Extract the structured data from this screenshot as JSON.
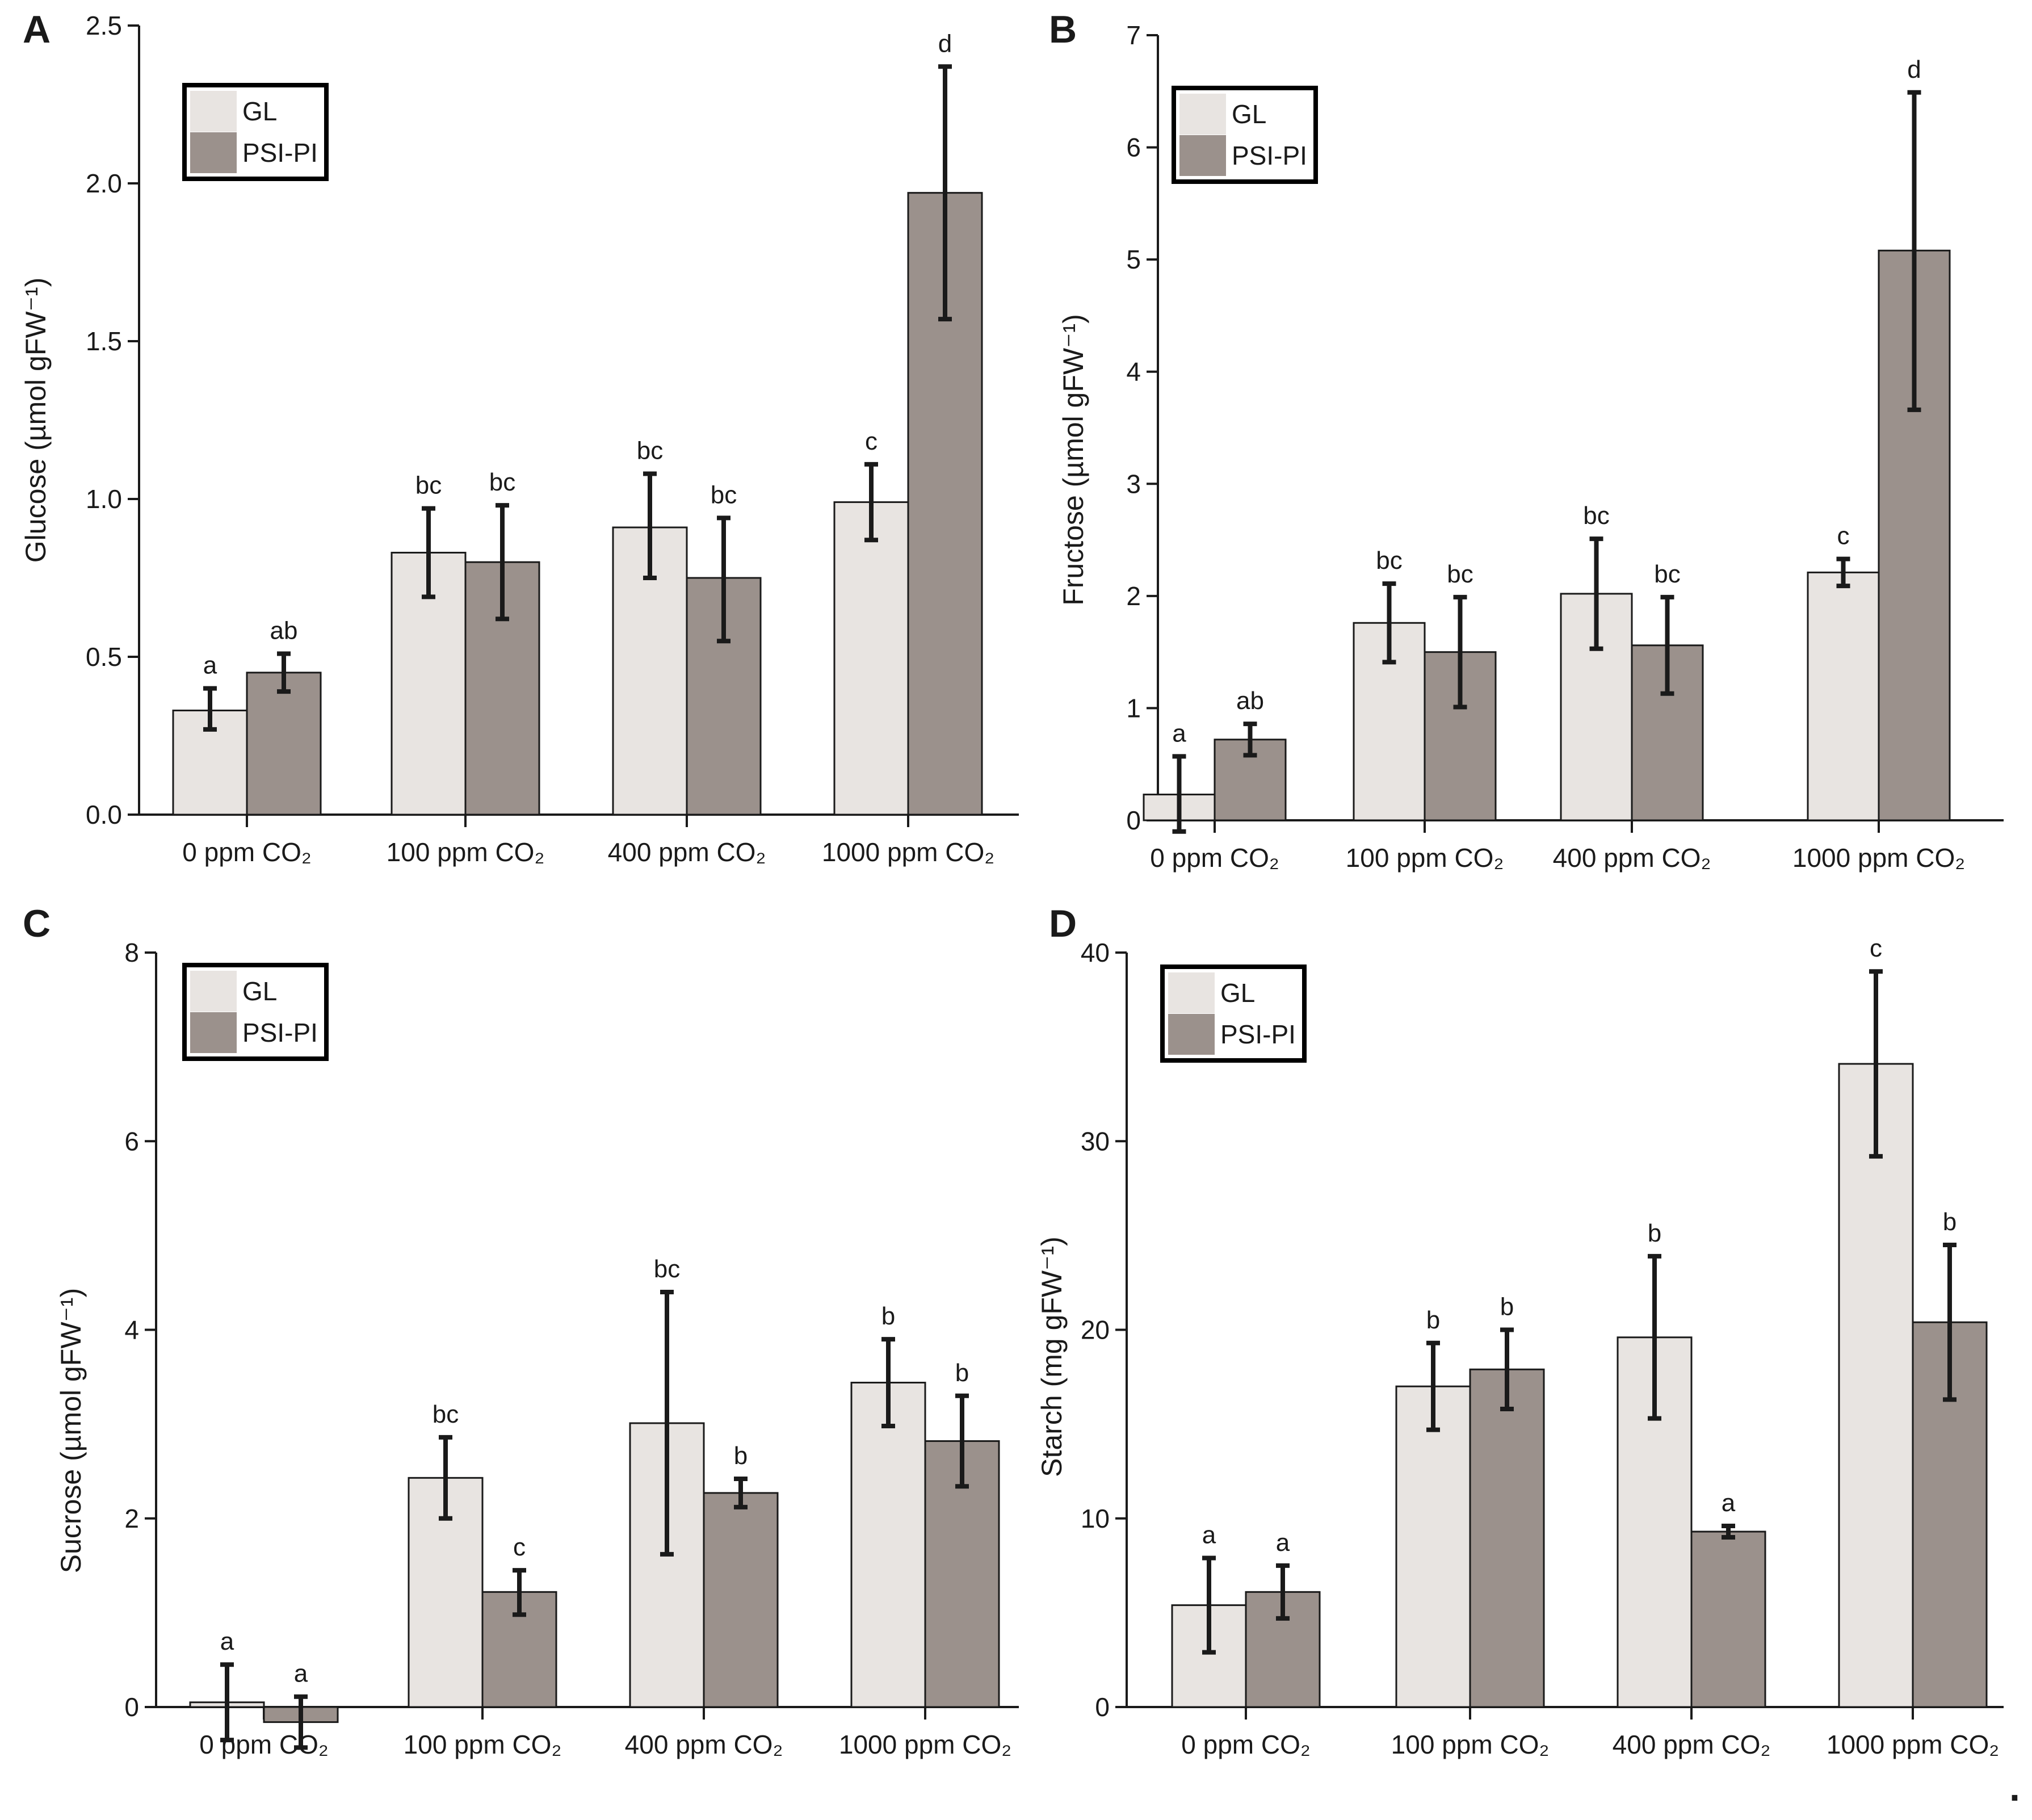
{
  "figure": {
    "trailing_mark": "."
  },
  "colors": {
    "GL": "#e8e4e1",
    "PSI-PI": "#9b918c",
    "axis": "#1a1a1a",
    "errorbar": "#1a1a1a",
    "legend_border": "#000000"
  },
  "chart_data": [
    {
      "panel": "A",
      "type": "bar",
      "ylabel": "Glucose (µmol gFW⁻¹)",
      "ylim": [
        0,
        2.5
      ],
      "yticks": [
        "0.0",
        "0.5",
        "1.0",
        "1.5",
        "2.0",
        "2.5"
      ],
      "ytick_values": [
        0,
        0.5,
        1.0,
        1.5,
        2.0,
        2.5
      ],
      "categories": [
        "0 ppm CO₂",
        "100 ppm CO₂",
        "400 ppm CO₂",
        "1000 ppm CO₂"
      ],
      "legend": [
        "GL",
        "PSI-PI"
      ],
      "legend_position": "top-left",
      "series": [
        {
          "name": "GL",
          "values": [
            0.33,
            0.83,
            0.91,
            0.99
          ],
          "err_low": [
            0.27,
            0.69,
            0.75,
            0.87
          ],
          "err_high": [
            0.4,
            0.97,
            1.08,
            1.11
          ],
          "labels": [
            "a",
            "bc",
            "bc",
            "c"
          ]
        },
        {
          "name": "PSI-PI",
          "values": [
            0.45,
            0.8,
            0.75,
            1.97
          ],
          "err_low": [
            0.39,
            0.62,
            0.55,
            1.57
          ],
          "err_high": [
            0.51,
            0.98,
            0.94,
            2.37
          ],
          "labels": [
            "ab",
            "bc",
            "bc",
            "d"
          ]
        }
      ]
    },
    {
      "panel": "B",
      "type": "bar",
      "ylabel": "Fructose (µmol gFW⁻¹)",
      "ylim": [
        0,
        7
      ],
      "yticks": [
        "0",
        "1",
        "2",
        "3",
        "4",
        "5",
        "6",
        "7"
      ],
      "ytick_values": [
        0,
        1,
        2,
        3,
        4,
        5,
        6,
        7
      ],
      "categories": [
        "0 ppm CO₂",
        "100 ppm CO₂",
        "400 ppm CO₂",
        "1000 ppm CO₂"
      ],
      "legend": [
        "GL",
        "PSI-PI"
      ],
      "legend_position": "top-left",
      "series": [
        {
          "name": "GL",
          "values": [
            0.23,
            1.76,
            2.02,
            2.21
          ],
          "err_low": [
            -0.1,
            1.41,
            1.53,
            2.09
          ],
          "err_high": [
            0.57,
            2.11,
            2.51,
            2.33
          ],
          "labels": [
            "a",
            "bc",
            "bc",
            "c"
          ]
        },
        {
          "name": "PSI-PI",
          "values": [
            0.72,
            1.5,
            1.56,
            5.08
          ],
          "err_low": [
            0.58,
            1.01,
            1.13,
            3.66
          ],
          "err_high": [
            0.86,
            1.99,
            1.99,
            6.49
          ],
          "labels": [
            "ab",
            "bc",
            "bc",
            "d"
          ]
        }
      ]
    },
    {
      "panel": "C",
      "type": "bar",
      "ylabel": "Sucrose (µmol gFW⁻¹)",
      "ylim": [
        0,
        8
      ],
      "yticks": [
        "0",
        "2",
        "4",
        "6",
        "8"
      ],
      "ytick_values": [
        0,
        2,
        4,
        6,
        8
      ],
      "categories": [
        "0 ppm CO₂",
        "100 ppm CO₂",
        "400 ppm CO₂",
        "1000 ppm CO₂"
      ],
      "legend": [
        "GL",
        "PSI-PI"
      ],
      "legend_position": "top-left",
      "series": [
        {
          "name": "GL",
          "values": [
            0.05,
            2.43,
            3.01,
            3.44
          ],
          "err_low": [
            -0.35,
            2.0,
            1.62,
            2.98
          ],
          "err_high": [
            0.45,
            2.86,
            4.4,
            3.9
          ],
          "labels": [
            "a",
            "bc",
            "bc",
            "b"
          ]
        },
        {
          "name": "PSI-PI",
          "values": [
            -0.16,
            1.22,
            2.27,
            2.82
          ],
          "err_low": [
            -0.43,
            0.98,
            2.12,
            2.34
          ],
          "err_high": [
            0.11,
            1.45,
            2.42,
            3.3
          ],
          "labels": [
            "a",
            "c",
            "b",
            "b"
          ]
        }
      ]
    },
    {
      "panel": "D",
      "type": "bar",
      "ylabel": "Starch (mg gFW⁻¹)",
      "ylim": [
        0,
        40
      ],
      "yticks": [
        "0",
        "10",
        "20",
        "30",
        "40"
      ],
      "ytick_values": [
        0,
        10,
        20,
        30,
        40
      ],
      "categories": [
        "0 ppm CO₂",
        "100 ppm CO₂",
        "400 ppm CO₂",
        "1000 ppm CO₂"
      ],
      "legend": [
        "GL",
        "PSI-PI"
      ],
      "legend_position": "top-left",
      "series": [
        {
          "name": "GL",
          "values": [
            5.4,
            17.0,
            19.6,
            34.1
          ],
          "err_low": [
            2.9,
            14.7,
            15.3,
            29.2
          ],
          "err_high": [
            7.9,
            19.3,
            23.9,
            39.0
          ],
          "labels": [
            "a",
            "b",
            "b",
            "c"
          ]
        },
        {
          "name": "PSI-PI",
          "values": [
            6.1,
            17.9,
            9.3,
            20.4
          ],
          "err_low": [
            4.7,
            15.8,
            9.0,
            16.3
          ],
          "err_high": [
            7.5,
            20.0,
            9.6,
            24.5
          ],
          "labels": [
            "a",
            "b",
            "a",
            "b"
          ]
        }
      ]
    }
  ]
}
